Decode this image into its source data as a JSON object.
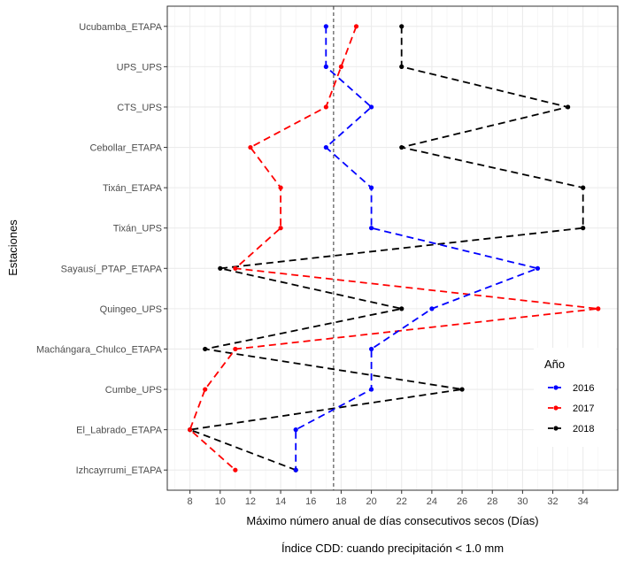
{
  "chart_data": {
    "type": "line",
    "xlabel": "Máximo número anual de días consecutivos secos (Días)",
    "ylabel": "Estaciones",
    "caption": "Índice CDD: cuando precipitación < 1.0 mm",
    "categories": [
      "Ucubamba_ETAPA",
      "UPS_UPS",
      "CTS_UPS",
      "Cebollar_ETAPA",
      "Tixán_ETAPA",
      "Tixán_UPS",
      "Sayausí_PTAP_ETAPA",
      "Quingeo_UPS",
      "Machángara_Chulco_ETAPA",
      "Cumbe_UPS",
      "El_Labrado_ETAPA",
      "Izhcayrrumi_ETAPA"
    ],
    "xlim": [
      6.5,
      36.3
    ],
    "xticks": [
      8,
      10,
      12,
      14,
      16,
      18,
      20,
      22,
      24,
      26,
      28,
      30,
      32,
      34
    ],
    "reference_line_x": 17.5,
    "grid": true,
    "legend": {
      "title": "Año",
      "placement": "right"
    },
    "series": [
      {
        "name": "2016",
        "color": "#0000ff",
        "values": [
          17,
          17,
          20,
          17,
          20,
          20,
          31,
          24,
          20,
          20,
          15,
          15
        ]
      },
      {
        "name": "2017",
        "color": "#ff0000",
        "values": [
          19,
          18,
          17,
          12,
          14,
          14,
          11,
          35,
          11,
          9,
          8,
          11
        ]
      },
      {
        "name": "2018",
        "color": "#000000",
        "values": [
          22,
          22,
          33,
          22,
          34,
          34,
          10,
          22,
          9,
          26,
          8,
          15
        ]
      }
    ]
  }
}
